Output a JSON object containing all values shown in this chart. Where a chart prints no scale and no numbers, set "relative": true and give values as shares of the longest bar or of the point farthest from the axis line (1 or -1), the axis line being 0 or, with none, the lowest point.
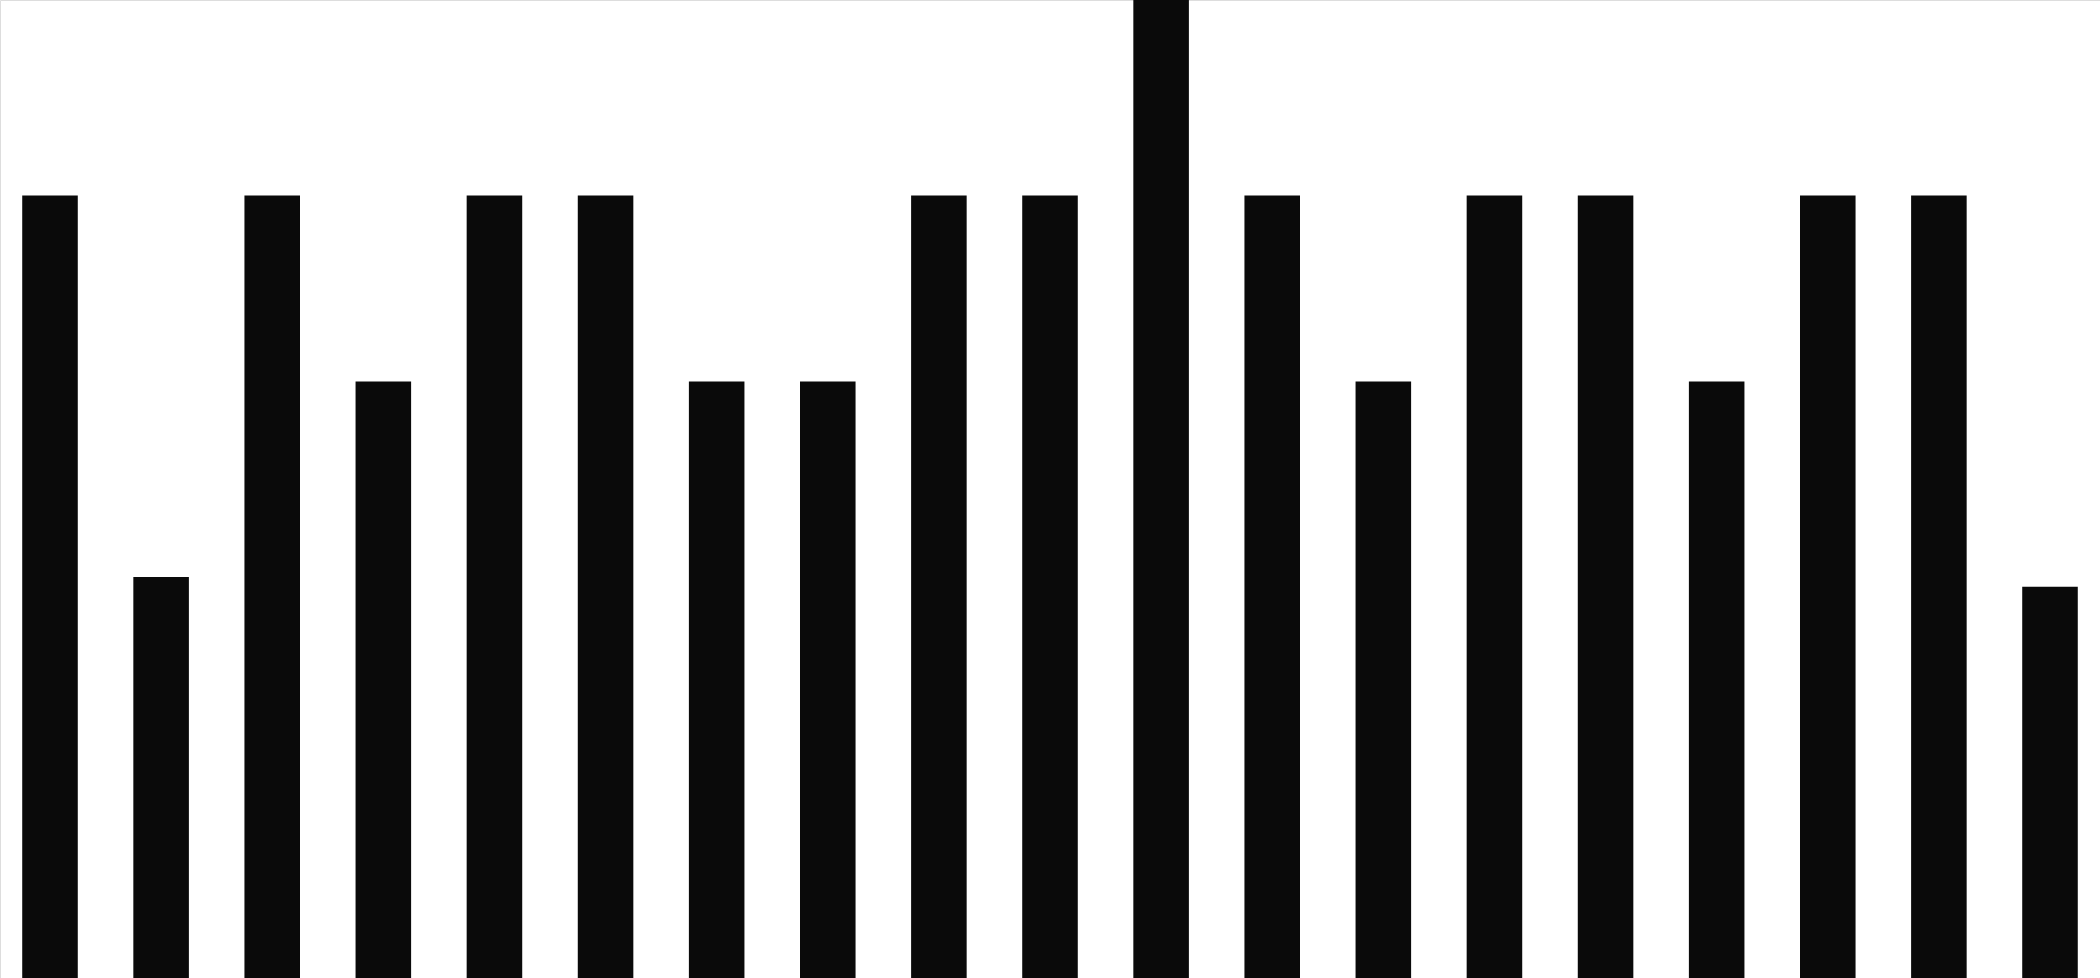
{
  "chart_data": {
    "type": "bar",
    "relative": true,
    "color": "#0a0a0a",
    "categories": [
      null,
      null,
      null,
      null,
      null,
      null,
      null,
      null,
      null,
      null,
      null,
      null,
      null,
      null,
      null,
      null,
      null,
      null,
      null
    ],
    "values": [
      0.8,
      0.41,
      0.8,
      0.61,
      0.8,
      0.8,
      0.61,
      0.61,
      0.8,
      0.8,
      1,
      0.8,
      0.61,
      0.8,
      0.8,
      0.61,
      0.8,
      0.8,
      0.4
    ]
  }
}
